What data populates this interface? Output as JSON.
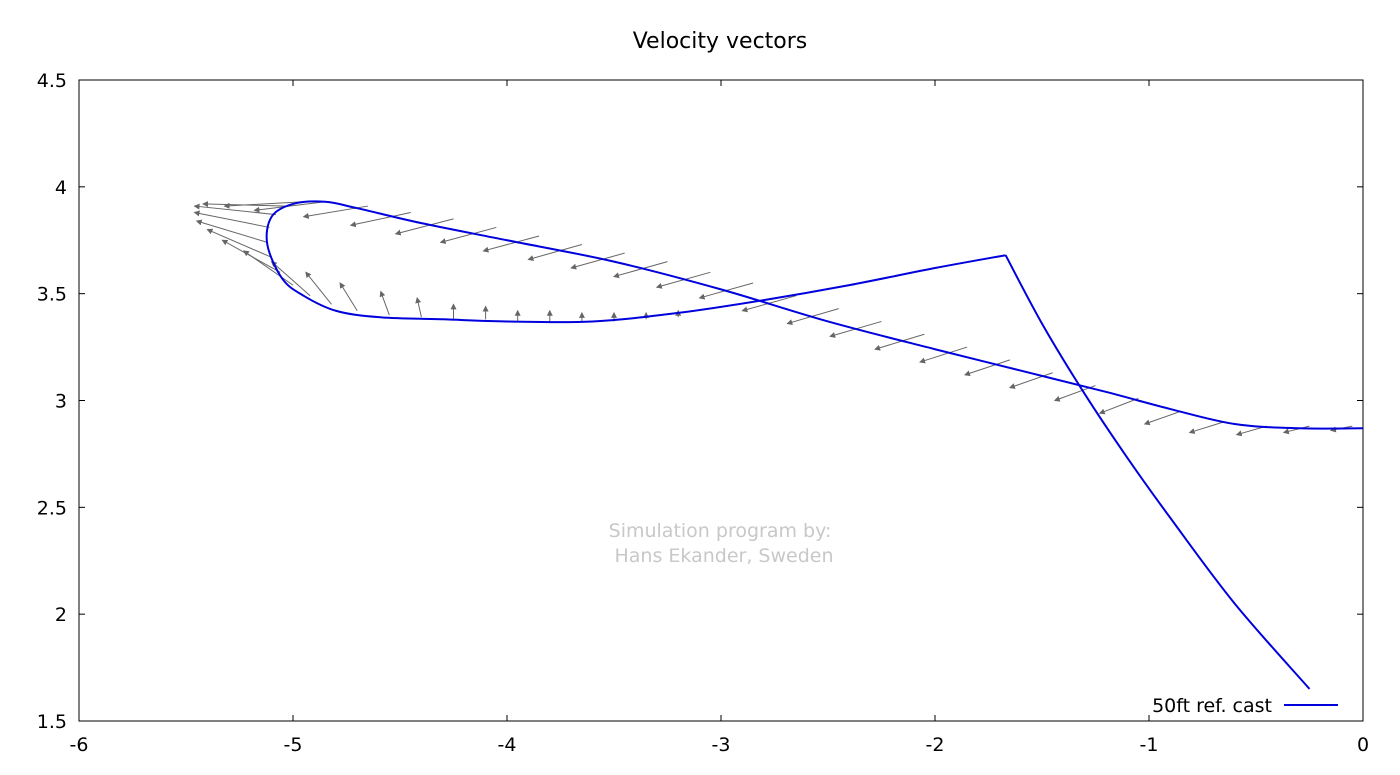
{
  "chart_data": {
    "type": "line",
    "title": "Velocity vectors",
    "xlabel": "",
    "ylabel": "",
    "xlim": [
      -6,
      0
    ],
    "ylim": [
      1.5,
      4.5
    ],
    "xticks": [
      -6,
      -5,
      -4,
      -3,
      -2,
      -1,
      0
    ],
    "yticks": [
      1.5,
      2,
      2.5,
      3,
      3.5,
      4,
      4.5
    ],
    "xtick_labels": [
      "-6",
      "-5",
      "-4",
      "-3",
      "-2",
      "-1",
      "0"
    ],
    "ytick_labels": [
      "1.5",
      "2",
      "2.5",
      "3",
      "3.5",
      "4",
      "4.5"
    ],
    "grid": false,
    "legend_position": "bottom-right",
    "watermark": [
      "Simulation program by:",
      "Hans Ekander, Sweden"
    ],
    "colors": {
      "line": "#0000dd",
      "vectors": "#666666",
      "watermark": "#c8c8c8"
    },
    "series": [
      {
        "name": "50ft ref. cast",
        "kind": "fly line loop",
        "x": [
          0.0,
          -0.3,
          -0.6,
          -0.9,
          -1.2,
          -1.6,
          -2.0,
          -2.5,
          -3.0,
          -3.5,
          -4.0,
          -4.4,
          -4.7,
          -4.85,
          -5.0,
          -5.1,
          -5.12,
          -5.05,
          -4.95,
          -4.8,
          -4.6,
          -4.3,
          -4.0,
          -3.6,
          -3.2,
          -2.8,
          -2.4,
          -2.0,
          -1.67
        ],
        "y": [
          2.87,
          2.87,
          2.89,
          2.96,
          3.04,
          3.14,
          3.24,
          3.37,
          3.52,
          3.65,
          3.75,
          3.83,
          3.9,
          3.93,
          3.92,
          3.86,
          3.73,
          3.57,
          3.49,
          3.42,
          3.39,
          3.38,
          3.37,
          3.37,
          3.41,
          3.47,
          3.54,
          3.62,
          3.68
        ]
      },
      {
        "name": "",
        "kind": "rod leg",
        "x": [
          -1.67,
          -1.5,
          -1.3,
          -1.1,
          -0.9,
          -0.6,
          -0.25
        ],
        "y": [
          3.68,
          3.36,
          3.03,
          2.73,
          2.45,
          2.05,
          1.65
        ]
      }
    ],
    "vectors": {
      "description": "Velocity vectors drawn along the loop",
      "x": [
        -0.05,
        -0.25,
        -0.45,
        -0.65,
        -0.85,
        -1.05,
        -1.25,
        -1.45,
        -1.65,
        -1.85,
        -2.05,
        -2.25,
        -2.45,
        -2.65,
        -2.85,
        -3.05,
        -3.25,
        -3.45,
        -3.65,
        -3.85,
        -4.05,
        -4.25,
        -4.45,
        -4.65,
        -4.85,
        -4.95,
        -5.02,
        -5.08,
        -5.11,
        -5.12,
        -5.1,
        -5.06,
        -5.0,
        -4.92,
        -4.82,
        -4.7,
        -4.55,
        -4.4,
        -4.25,
        -4.1,
        -3.95,
        -3.8,
        -3.65,
        -3.5,
        -3.35,
        -3.2
      ],
      "y": [
        2.88,
        2.88,
        2.88,
        2.9,
        2.95,
        3.01,
        3.07,
        3.13,
        3.19,
        3.25,
        3.31,
        3.37,
        3.43,
        3.49,
        3.55,
        3.6,
        3.65,
        3.69,
        3.73,
        3.77,
        3.81,
        3.85,
        3.88,
        3.91,
        3.93,
        3.93,
        3.91,
        3.87,
        3.81,
        3.74,
        3.67,
        3.6,
        3.54,
        3.49,
        3.45,
        3.42,
        3.4,
        3.39,
        3.38,
        3.38,
        3.37,
        3.37,
        3.37,
        3.37,
        3.38,
        3.39
      ],
      "dx": [
        0.1,
        0.12,
        0.14,
        0.16,
        0.17,
        0.18,
        0.19,
        0.2,
        0.21,
        0.22,
        0.23,
        0.24,
        0.24,
        0.25,
        0.25,
        0.25,
        0.25,
        0.25,
        0.25,
        0.26,
        0.26,
        0.27,
        0.28,
        0.3,
        0.33,
        0.37,
        0.4,
        0.38,
        0.35,
        0.33,
        0.3,
        0.27,
        0.23,
        0.18,
        0.12,
        0.08,
        0.04,
        0.02,
        0.0,
        0.0,
        0.0,
        0.0,
        0.0,
        0.0,
        0.0,
        0.0
      ],
      "dy": [
        0.02,
        0.03,
        0.04,
        0.05,
        0.06,
        0.07,
        0.07,
        0.07,
        0.07,
        0.07,
        0.07,
        0.07,
        0.07,
        0.07,
        0.07,
        0.07,
        0.07,
        0.07,
        0.07,
        0.07,
        0.07,
        0.07,
        0.06,
        0.05,
        0.04,
        0.02,
        -0.01,
        -0.04,
        -0.07,
        -0.1,
        -0.13,
        -0.15,
        -0.16,
        -0.16,
        -0.15,
        -0.13,
        -0.11,
        -0.09,
        -0.07,
        -0.06,
        -0.05,
        -0.05,
        -0.04,
        -0.04,
        -0.03,
        -0.03
      ]
    }
  }
}
